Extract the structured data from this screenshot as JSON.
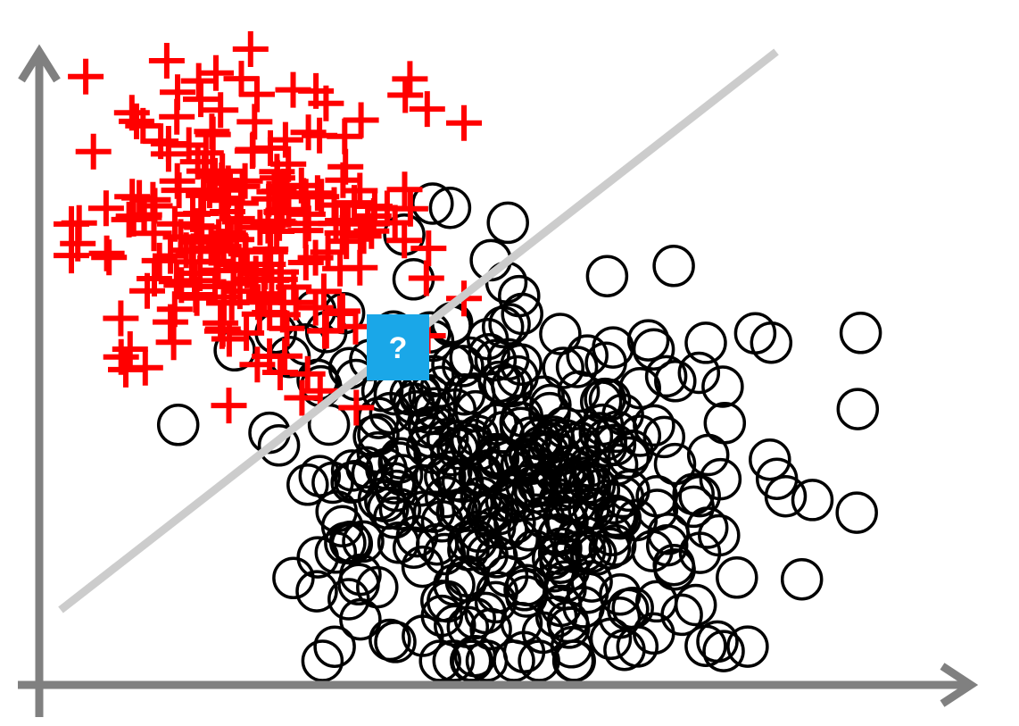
{
  "colors": {
    "background": "#ffffff",
    "axis": "#808080",
    "boundary": "#cccccc",
    "positive_class": "#ff0000",
    "negative_class": "#000000",
    "unknown_box": "#1aa7e8",
    "unknown_text": "#ffffff"
  },
  "classes": [
    {
      "marker": "plus-icon",
      "color": "#ff0000",
      "count": 220
    },
    {
      "marker": "circle-icon",
      "color": "#000000",
      "count": 360
    }
  ],
  "query_point": {
    "label": "?"
  }
}
